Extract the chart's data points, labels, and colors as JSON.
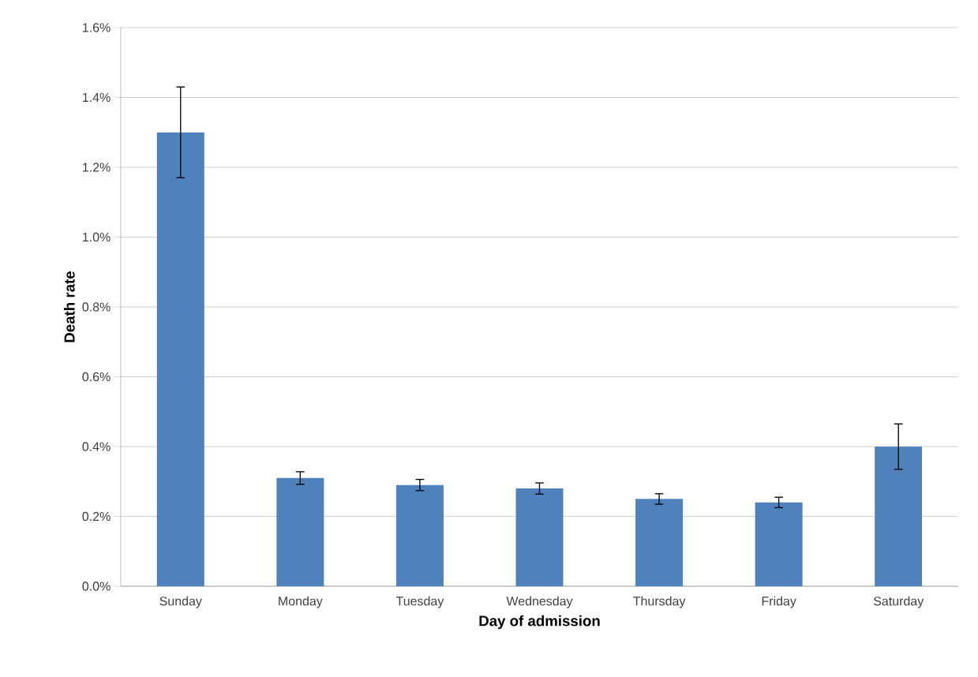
{
  "chart_data": {
    "type": "bar",
    "xlabel": "Day of admission",
    "ylabel": "Death rate",
    "categories": [
      "Sunday",
      "Monday",
      "Tuesday",
      "Wednesday",
      "Thursday",
      "Friday",
      "Saturday"
    ],
    "values": [
      1.3,
      0.31,
      0.29,
      0.28,
      0.25,
      0.24,
      0.4
    ],
    "errors": [
      0.13,
      0.018,
      0.016,
      0.016,
      0.015,
      0.015,
      0.065
    ],
    "color": "#4f81bd",
    "ylim": [
      0,
      1.6
    ],
    "yticks": [
      {
        "value": 0,
        "label": "0.0%"
      },
      {
        "value": 0.2,
        "label": "0.2%"
      },
      {
        "value": 0.4,
        "label": "0.4%"
      },
      {
        "value": 0.6,
        "label": "0.6%"
      },
      {
        "value": 0.8,
        "label": "0.8%"
      },
      {
        "value": 1.0,
        "label": "1.0%"
      },
      {
        "value": 1.2,
        "label": "1.2%"
      },
      {
        "value": 1.4,
        "label": "1.4%"
      },
      {
        "value": 1.6,
        "label": "1.6%"
      }
    ],
    "grid": "y"
  }
}
